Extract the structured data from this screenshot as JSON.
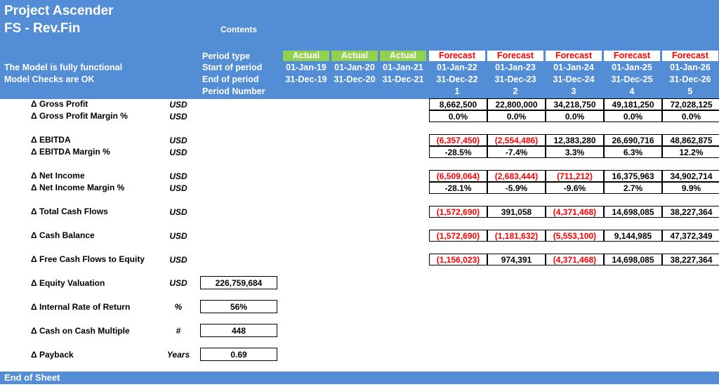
{
  "header": {
    "title_line1": "Project Ascender",
    "title_line2": "FS - Rev.Fin",
    "contents_link": "Contents",
    "status_line1": "The Model is fully functional",
    "status_line2": "Model Checks are OK"
  },
  "row_labels": {
    "period_type": "Period type",
    "start": "Start of period",
    "end": "End of period",
    "number": "Period Number"
  },
  "periods": [
    {
      "type": "Actual",
      "start": "01-Jan-19",
      "end": "31-Dec-19",
      "num": ""
    },
    {
      "type": "Actual",
      "start": "01-Jan-20",
      "end": "31-Dec-20",
      "num": ""
    },
    {
      "type": "Actual",
      "start": "01-Jan-21",
      "end": "31-Dec-21",
      "num": ""
    },
    {
      "type": "Forecast",
      "start": "01-Jan-22",
      "end": "31-Dec-22",
      "num": "1"
    },
    {
      "type": "Forecast",
      "start": "01-Jan-23",
      "end": "31-Dec-23",
      "num": "2"
    },
    {
      "type": "Forecast",
      "start": "01-Jan-24",
      "end": "31-Dec-24",
      "num": "3"
    },
    {
      "type": "Forecast",
      "start": "01-Jan-25",
      "end": "31-Dec-25",
      "num": "4"
    },
    {
      "type": "Forecast",
      "start": "01-Jan-26",
      "end": "31-Dec-26",
      "num": "5"
    }
  ],
  "metrics": [
    {
      "label": "Δ Gross Profit",
      "unit": "USD",
      "values": [
        "8,662,500",
        "22,800,000",
        "34,218,750",
        "49,181,250",
        "72,028,125"
      ]
    },
    {
      "label": "Δ Gross Profit Margin %",
      "unit": "USD",
      "values": [
        "0.0%",
        "0.0%",
        "0.0%",
        "0.0%",
        "0.0%"
      ]
    },
    {
      "label": "Δ EBITDA",
      "unit": "USD",
      "values": [
        "(6,357,450)",
        "(2,554,486)",
        "12,383,280",
        "26,690,716",
        "48,862,875"
      ]
    },
    {
      "label": "Δ EBITDA Margin %",
      "unit": "USD",
      "values": [
        "-28.5%",
        "-7.4%",
        "3.3%",
        "6.3%",
        "12.2%"
      ]
    },
    {
      "label": "Δ Net Income",
      "unit": "USD",
      "values": [
        "(6,509,064)",
        "(2,683,444)",
        "(711,212)",
        "16,375,963",
        "34,902,714"
      ]
    },
    {
      "label": "Δ Net Income Margin %",
      "unit": "USD",
      "values": [
        "-28.1%",
        "-5.9%",
        "-9.6%",
        "2.7%",
        "9.9%"
      ]
    },
    {
      "label": "Δ Total Cash Flows",
      "unit": "USD",
      "values": [
        "(1,572,690)",
        "391,058",
        "(4,371,468)",
        "14,698,085",
        "38,227,364"
      ]
    },
    {
      "label": "Δ Cash Balance",
      "unit": "USD",
      "values": [
        "(1,572,690)",
        "(1,181,632)",
        "(5,553,100)",
        "9,144,985",
        "47,372,349"
      ]
    },
    {
      "label": "Δ Free Cash Flows to Equity",
      "unit": "USD",
      "values": [
        "(1,156,023)",
        "974,391",
        "(4,371,468)",
        "14,698,085",
        "38,227,364"
      ]
    }
  ],
  "summary": [
    {
      "label": "Δ Equity Valuation",
      "unit": "USD",
      "value": "226,759,684"
    },
    {
      "label": "Δ Internal Rate of Return",
      "unit": "%",
      "value": "56%"
    },
    {
      "label": "Δ Cash on Cash Multiple",
      "unit": "#",
      "value": "448"
    },
    {
      "label": "Δ Payback",
      "unit": "Years",
      "value": "0.69"
    }
  ],
  "footer": {
    "label": "End of Sheet"
  }
}
